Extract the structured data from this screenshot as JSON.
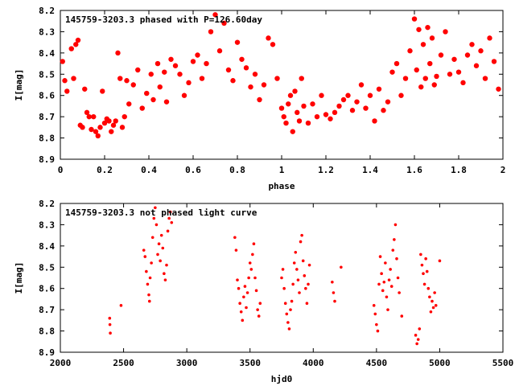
{
  "chart_data": [
    {
      "type": "scatter",
      "title": "145759-3203.3 phased with P=126.60day",
      "xlabel": "phase",
      "ylabel": "I[mag]",
      "xlim": [
        0,
        2
      ],
      "ylim": [
        8.9,
        8.2
      ],
      "y_inverted": true,
      "x_ticks": [
        "0",
        "0.2",
        "0.4",
        "0.6",
        "0.8",
        "1",
        "1.2",
        "1.4",
        "1.6",
        "1.8",
        "2"
      ],
      "y_ticks": [
        "8.2",
        "8.3",
        "8.4",
        "8.5",
        "8.6",
        "8.7",
        "8.8",
        "8.9"
      ],
      "grid": false,
      "marker": "filled-circle",
      "color": "#ff0000",
      "x": [
        0.01,
        0.02,
        0.03,
        0.05,
        0.06,
        0.07,
        0.08,
        0.09,
        0.1,
        0.11,
        0.12,
        0.13,
        0.14,
        0.15,
        0.16,
        0.17,
        0.18,
        0.19,
        0.2,
        0.21,
        0.22,
        0.23,
        0.24,
        0.25,
        0.26,
        0.27,
        0.28,
        0.29,
        0.3,
        0.31,
        0.33,
        0.35,
        0.37,
        0.39,
        0.41,
        0.42,
        0.44,
        0.45,
        0.47,
        0.48,
        0.5,
        0.52,
        0.54,
        0.56,
        0.58,
        0.6,
        0.62,
        0.64,
        0.66,
        0.68,
        0.7,
        0.72,
        0.74,
        0.76,
        0.78,
        0.8,
        0.82,
        0.84,
        0.86,
        0.88,
        0.9,
        0.92,
        0.94,
        0.96,
        0.98,
        1.0,
        1.01,
        1.02,
        1.03,
        1.04,
        1.05,
        1.06,
        1.07,
        1.08,
        1.09,
        1.1,
        1.12,
        1.14,
        1.16,
        1.18,
        1.2,
        1.22,
        1.24,
        1.26,
        1.28,
        1.3,
        1.32,
        1.34,
        1.36,
        1.38,
        1.4,
        1.42,
        1.44,
        1.46,
        1.48,
        1.5,
        1.52,
        1.54,
        1.56,
        1.58,
        1.6,
        1.61,
        1.62,
        1.63,
        1.64,
        1.65,
        1.66,
        1.67,
        1.68,
        1.69,
        1.7,
        1.72,
        1.74,
        1.76,
        1.78,
        1.8,
        1.82,
        1.84,
        1.86,
        1.88,
        1.9,
        1.92,
        1.94,
        1.96,
        1.98
      ],
      "y": [
        8.44,
        8.53,
        8.58,
        8.38,
        8.52,
        8.36,
        8.34,
        8.74,
        8.75,
        8.57,
        8.68,
        8.7,
        8.76,
        8.7,
        8.77,
        8.79,
        8.75,
        8.58,
        8.73,
        8.71,
        8.72,
        8.77,
        8.74,
        8.72,
        8.4,
        8.52,
        8.75,
        8.7,
        8.53,
        8.64,
        8.55,
        8.48,
        8.66,
        8.59,
        8.5,
        8.62,
        8.45,
        8.56,
        8.49,
        8.63,
        8.43,
        8.46,
        8.5,
        8.6,
        8.54,
        8.44,
        8.41,
        8.52,
        8.45,
        8.3,
        8.22,
        8.39,
        8.26,
        8.48,
        8.53,
        8.35,
        8.43,
        8.47,
        8.56,
        8.5,
        8.62,
        8.55,
        8.33,
        8.36,
        8.52,
        8.66,
        8.7,
        8.73,
        8.64,
        8.6,
        8.77,
        8.58,
        8.68,
        8.72,
        8.52,
        8.65,
        8.73,
        8.64,
        8.7,
        8.6,
        8.69,
        8.71,
        8.68,
        8.65,
        8.62,
        8.6,
        8.67,
        8.63,
        8.55,
        8.66,
        8.6,
        8.72,
        8.57,
        8.67,
        8.63,
        8.49,
        8.45,
        8.6,
        8.52,
        8.39,
        8.24,
        8.48,
        8.29,
        8.56,
        8.36,
        8.52,
        8.28,
        8.45,
        8.33,
        8.55,
        8.51,
        8.41,
        8.3,
        8.5,
        8.43,
        8.49,
        8.54,
        8.41,
        8.36,
        8.46,
        8.39,
        8.52,
        8.33,
        8.44,
        8.57
      ]
    },
    {
      "type": "scatter",
      "title": "145759-3203.3 not phased light curve",
      "xlabel": "hjd0",
      "ylabel": "I[mag]",
      "xlim": [
        2000,
        5500
      ],
      "ylim": [
        8.9,
        8.2
      ],
      "y_inverted": true,
      "x_ticks": [
        "2000",
        "2500",
        "3000",
        "3500",
        "4000",
        "4500",
        "5000",
        "5500"
      ],
      "y_ticks": [
        "8.2",
        "8.3",
        "8.4",
        "8.5",
        "8.6",
        "8.7",
        "8.8",
        "8.9"
      ],
      "grid": false,
      "marker": "filled-circle",
      "color": "#ff0000",
      "x": [
        2390,
        2392,
        2395,
        2480,
        2660,
        2670,
        2680,
        2690,
        2700,
        2705,
        2710,
        2720,
        2730,
        2740,
        2750,
        2760,
        2770,
        2780,
        2790,
        2800,
        2810,
        2820,
        2830,
        2840,
        2850,
        2860,
        2870,
        2880,
        3380,
        3390,
        3400,
        3410,
        3420,
        3430,
        3440,
        3450,
        3460,
        3470,
        3480,
        3490,
        3500,
        3510,
        3520,
        3530,
        3540,
        3550,
        3560,
        3570,
        3580,
        3750,
        3760,
        3770,
        3780,
        3790,
        3800,
        3810,
        3820,
        3830,
        3840,
        3850,
        3860,
        3870,
        3880,
        3890,
        3900,
        3910,
        3920,
        3930,
        3940,
        3950,
        3960,
        3970,
        4150,
        4160,
        4170,
        4220,
        4480,
        4490,
        4500,
        4510,
        4520,
        4530,
        4540,
        4550,
        4560,
        4570,
        4580,
        4590,
        4600,
        4610,
        4620,
        4630,
        4640,
        4650,
        4660,
        4670,
        4680,
        4700,
        4810,
        4820,
        4830,
        4840,
        4850,
        4860,
        4870,
        4880,
        4890,
        4900,
        4910,
        4920,
        4930,
        4940,
        4950,
        4960,
        4970,
        5000
      ],
      "y": [
        8.74,
        8.77,
        8.81,
        8.68,
        8.42,
        8.45,
        8.52,
        8.58,
        8.63,
        8.66,
        8.55,
        8.48,
        8.36,
        8.27,
        8.22,
        8.3,
        8.44,
        8.39,
        8.47,
        8.35,
        8.41,
        8.53,
        8.56,
        8.49,
        8.33,
        8.27,
        8.24,
        8.29,
        8.36,
        8.42,
        8.56,
        8.6,
        8.67,
        8.71,
        8.75,
        8.64,
        8.59,
        8.69,
        8.62,
        8.55,
        8.48,
        8.51,
        8.44,
        8.39,
        8.55,
        8.61,
        8.7,
        8.73,
        8.67,
        8.55,
        8.51,
        8.6,
        8.67,
        8.72,
        8.76,
        8.79,
        8.7,
        8.66,
        8.58,
        8.48,
        8.43,
        8.51,
        8.56,
        8.62,
        8.38,
        8.35,
        8.47,
        8.54,
        8.6,
        8.67,
        8.58,
        8.49,
        8.57,
        8.62,
        8.66,
        8.5,
        8.68,
        8.72,
        8.77,
        8.8,
        8.58,
        8.45,
        8.53,
        8.61,
        8.57,
        8.48,
        8.64,
        8.7,
        8.56,
        8.51,
        8.59,
        8.42,
        8.37,
        8.3,
        8.46,
        8.55,
        8.62,
        8.73,
        8.82,
        8.86,
        8.84,
        8.79,
        8.44,
        8.49,
        8.53,
        8.58,
        8.46,
        8.52,
        8.6,
        8.64,
        8.71,
        8.66,
        8.69,
        8.62,
        8.68,
        8.47
      ]
    }
  ]
}
